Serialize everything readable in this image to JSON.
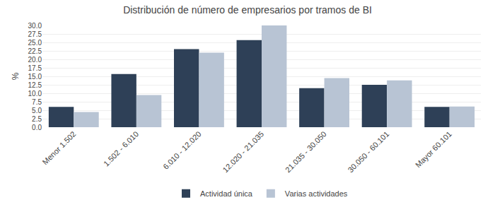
{
  "chart_data": {
    "type": "bar",
    "title": "Distribución de número de empresarios por tramos de BI",
    "ylabel": "%",
    "categories": [
      "Menor 1.502",
      "1.502 - 6.010",
      "6.010 - 12.020",
      "12.020 - 21.035",
      "21.035 - 30.050",
      "30.050 - 60.101",
      "Mayor 60.101"
    ],
    "series": [
      {
        "name": "Actividad única",
        "color": "#2E4057",
        "values": [
          6.0,
          15.7,
          23.0,
          25.7,
          11.5,
          12.5,
          6.0
        ]
      },
      {
        "name": "Varias actividades",
        "color": "#B8C4D4",
        "values": [
          4.5,
          9.5,
          22.0,
          30.0,
          14.5,
          13.8,
          6.1
        ]
      }
    ],
    "ylim": [
      0,
      30
    ],
    "yticks": [
      {
        "value": 0,
        "label": "0.0"
      },
      2.5,
      {
        "value": 5,
        "label": "5.0"
      },
      7.5,
      {
        "value": 10,
        "label": "10.0"
      },
      12.5,
      {
        "value": 15,
        "label": "15.0"
      },
      17.5,
      {
        "value": 20,
        "label": "20.0"
      },
      22.5,
      {
        "value": 25,
        "label": "25.0"
      },
      27.5,
      {
        "value": 30,
        "label": "30.0"
      }
    ],
    "grid": true,
    "legend": "bottom"
  }
}
